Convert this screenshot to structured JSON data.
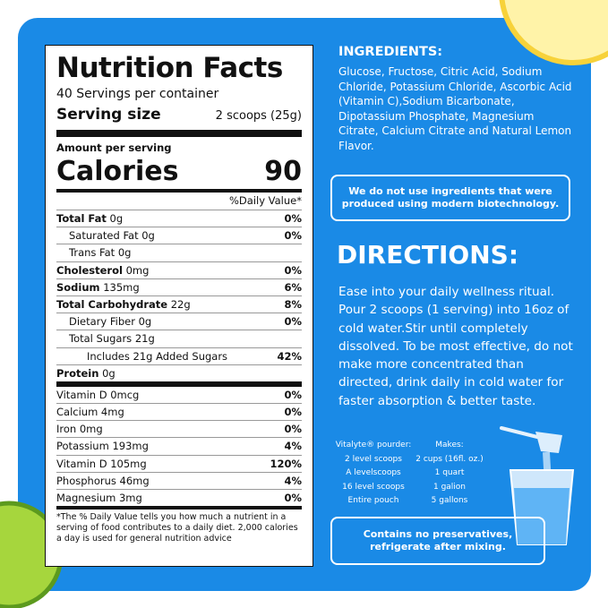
{
  "nutrition": {
    "title": "Nutrition Facts",
    "servings": "40 Servings per container",
    "serving_size_label": "Serving size",
    "serving_size": "2 scoops (25g)",
    "amount_per_serving": "Amount per serving",
    "calories_label": "Calories",
    "calories": "90",
    "daily_value_header": "%Daily Value*",
    "rows": [
      {
        "name": "Total Fat",
        "amount": "0g",
        "dv": "0%"
      },
      {
        "name": "Saturated Fat 0g",
        "dv": "0%"
      },
      {
        "name": "Trans Fat 0g"
      },
      {
        "name": "Cholesterol",
        "amount": "0mg",
        "dv": "0%"
      },
      {
        "name": "Sodium",
        "amount": "135mg",
        "dv": "6%"
      },
      {
        "name": "Total Carbohydrate",
        "amount": "22g",
        "dv": "8%"
      },
      {
        "name": "Dietary Fiber 0g",
        "dv": "0%"
      },
      {
        "name": "Total Sugars 21g"
      },
      {
        "name": "Includes 21g Added Sugars",
        "dv": "42%"
      },
      {
        "name": "Protein",
        "amount": "0g"
      }
    ],
    "vitamins": [
      {
        "name": "Vitamin D 0mcg",
        "dv": "0%"
      },
      {
        "name": "Calcium 4mg",
        "dv": "0%"
      },
      {
        "name": "Iron 0mg",
        "dv": "0%"
      },
      {
        "name": "Potassium 193mg",
        "dv": "4%"
      },
      {
        "name": "Vitamin D 105mg",
        "dv": "120%"
      },
      {
        "name": "Phosphorus 46mg",
        "dv": "4%"
      },
      {
        "name": "Magnesium 3mg",
        "dv": "0%"
      }
    ],
    "footnote": "*The % Daily Value tells you how much a nutrient in a serving of food contributes to a daily diet. 2,000 calories a day is used for general nutrition advice"
  },
  "ingredients": {
    "heading": "INGREDIENTS:",
    "text": "Glucose, Fructose, Citric Acid, Sodium Chloride, Potassium Chloride, Ascorbic Acid (Vitamin C),Sodium Bicarbonate, Dipotassium Phosphate, Magnesium Citrate, Calcium Citrate and Natural Lemon Flavor.",
    "note": "We do not use ingredients that were produced using modern biotechnology."
  },
  "directions": {
    "heading": "DIRECTIONS:",
    "text": "Ease into your daily wellness ritual. Pour 2 scoops (1 serving) into 16oz of cold water.Stir until completely dissolved. To be most effective, do not make more concentrated than directed, drink daily in cold water for faster absorption & better taste.",
    "table_headers": [
      "Vitalyte® pourder:",
      "Makes:"
    ],
    "table_rows": [
      [
        "2 level scoops",
        "2 cups (16fl. oz.)"
      ],
      [
        "A levelscoops",
        "1 quart"
      ],
      [
        "16 level scoops",
        "1 galion"
      ],
      [
        "Entire pouch",
        "5 gallons"
      ]
    ],
    "storage": "Contains no preservatives, refrigerate after mixing."
  }
}
